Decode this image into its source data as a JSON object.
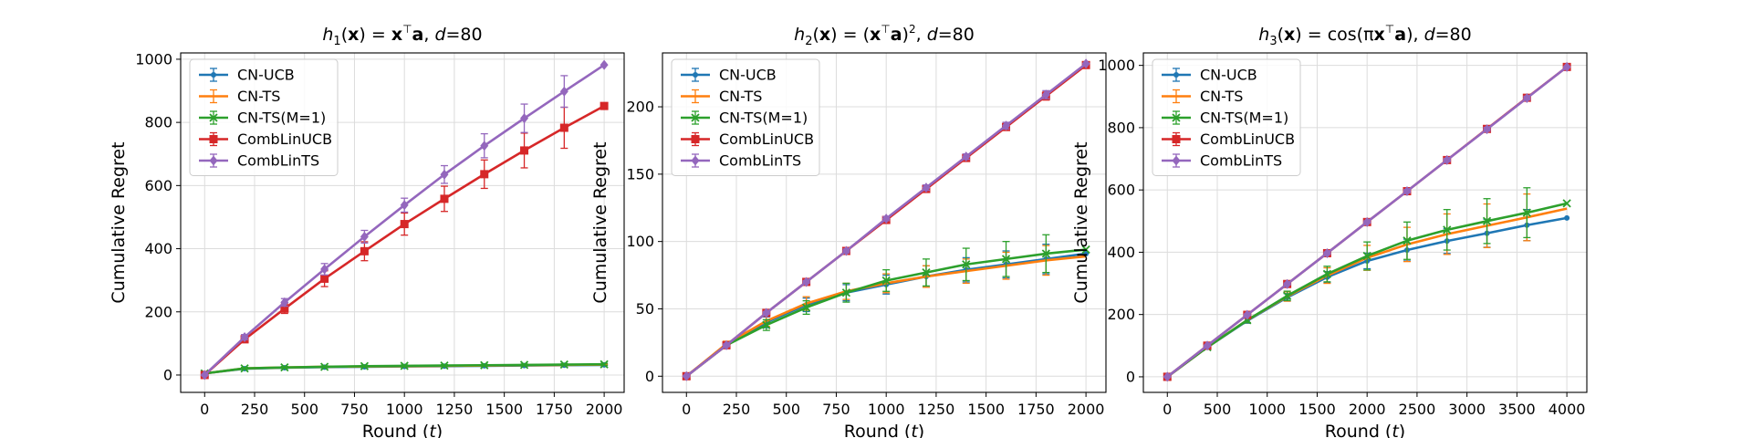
{
  "chart_data": [
    {
      "type": "line",
      "title": "h₁(x) = xᵀa, d=80",
      "title_parts": {
        "h": "h",
        "sub": "1",
        "mid": "(x) = x",
        "sup": "⊤",
        "tail": "a, ",
        "d": "d",
        "eq": "=80"
      },
      "xlabel": "Round (t)",
      "ylabel": "Cumulative Regret",
      "xlim": [
        -120,
        2100
      ],
      "ylim": [
        -55,
        1020
      ],
      "xticks": [
        0,
        250,
        500,
        750,
        1000,
        1250,
        1500,
        1750,
        2000
      ],
      "yticks": [
        0,
        200,
        400,
        600,
        800,
        1000
      ],
      "grid": true,
      "legend_position": "top-left",
      "series": [
        {
          "name": "CN-UCB",
          "color": "#1f77b4",
          "marker": "dot",
          "x": [
            0,
            200,
            400,
            600,
            800,
            1000,
            1200,
            1400,
            1600,
            1800,
            2000
          ],
          "y": [
            5,
            20,
            23,
            25,
            26,
            27,
            28,
            29,
            30,
            31,
            32
          ],
          "err": [
            3,
            2,
            2,
            2,
            2,
            2,
            2,
            2,
            2,
            2,
            2
          ]
        },
        {
          "name": "CN-TS",
          "color": "#ff7f0e",
          "marker": "none",
          "x": [
            0,
            200,
            400,
            600,
            800,
            1000,
            1200,
            1400,
            1600,
            1800,
            2000
          ],
          "y": [
            5,
            21,
            24,
            26,
            27,
            28,
            29,
            30,
            31,
            32,
            33
          ],
          "err": [
            3,
            2,
            2,
            2,
            2,
            2,
            2,
            2,
            2,
            2,
            2
          ]
        },
        {
          "name": "CN-TS(M=1)",
          "color": "#2ca02c",
          "marker": "x",
          "x": [
            0,
            200,
            400,
            600,
            800,
            1000,
            1200,
            1400,
            1600,
            1800,
            2000
          ],
          "y": [
            5,
            21,
            24,
            26,
            28,
            29,
            30,
            31,
            32,
            33,
            34
          ],
          "err": [
            3,
            3,
            3,
            3,
            3,
            3,
            3,
            3,
            3,
            3,
            3
          ]
        },
        {
          "name": "CombLinUCB",
          "color": "#d62728",
          "marker": "square",
          "x": [
            0,
            200,
            400,
            600,
            800,
            1000,
            1200,
            1400,
            1600,
            1800,
            2000
          ],
          "y": [
            0,
            113,
            210,
            305,
            392,
            478,
            558,
            636,
            711,
            783,
            852
          ],
          "err": [
            2,
            8,
            15,
            25,
            30,
            35,
            40,
            45,
            55,
            65,
            0
          ]
        },
        {
          "name": "CombLinTS",
          "color": "#9467bd",
          "marker": "diamond",
          "x": [
            0,
            200,
            400,
            600,
            800,
            1000,
            1200,
            1400,
            1600,
            1800,
            2000
          ],
          "y": [
            0,
            120,
            230,
            335,
            438,
            538,
            635,
            726,
            813,
            898,
            982
          ],
          "err": [
            2,
            8,
            12,
            18,
            20,
            22,
            28,
            38,
            45,
            50,
            0
          ]
        }
      ]
    },
    {
      "type": "line",
      "title": "h₂(x) = (xᵀa)², d=80",
      "title_parts": {
        "h": "h",
        "sub": "2",
        "mid": "(x) = (x",
        "sup": "⊤",
        "tail": "a)",
        "sup2": "2",
        "tail2": ", ",
        "d": "d",
        "eq": "=80"
      },
      "xlabel": "Round (t)",
      "ylabel": "Cumulative Regret",
      "xlim": [
        -120,
        2100
      ],
      "ylim": [
        -12,
        240
      ],
      "xticks": [
        0,
        250,
        500,
        750,
        1000,
        1250,
        1500,
        1750,
        2000
      ],
      "yticks": [
        0,
        50,
        100,
        150,
        200
      ],
      "grid": true,
      "legend_position": "top-left",
      "series": [
        {
          "name": "CN-UCB",
          "color": "#1f77b4",
          "marker": "dot",
          "x": [
            0,
            200,
            400,
            600,
            800,
            1000,
            1200,
            1400,
            1600,
            1800,
            2000
          ],
          "y": [
            0,
            23,
            40,
            53,
            62,
            68,
            74,
            79,
            83,
            87,
            91
          ],
          "err": [
            1,
            2,
            4,
            5,
            6,
            7,
            8,
            9,
            10,
            11,
            0
          ]
        },
        {
          "name": "CN-TS",
          "color": "#ff7f0e",
          "marker": "none",
          "x": [
            0,
            200,
            400,
            600,
            800,
            1000,
            1200,
            1400,
            1600,
            1800,
            2000
          ],
          "y": [
            0,
            24,
            41,
            54,
            63,
            69,
            74,
            78,
            82,
            86,
            89
          ],
          "err": [
            1,
            2,
            4,
            5,
            6,
            7,
            8,
            9,
            10,
            11,
            0
          ]
        },
        {
          "name": "CN-TS(M=1)",
          "color": "#2ca02c",
          "marker": "x",
          "x": [
            0,
            200,
            400,
            600,
            800,
            1000,
            1200,
            1400,
            1600,
            1800,
            2000
          ],
          "y": [
            0,
            23,
            38,
            51,
            62,
            71,
            77,
            83,
            87,
            91,
            94
          ],
          "err": [
            1,
            2,
            4,
            5,
            7,
            8,
            10,
            12,
            13,
            14,
            0
          ]
        },
        {
          "name": "CombLinUCB",
          "color": "#d62728",
          "marker": "square",
          "x": [
            0,
            200,
            400,
            600,
            800,
            1000,
            1200,
            1400,
            1600,
            1800,
            2000
          ],
          "y": [
            0,
            23,
            47,
            70,
            93,
            116,
            139,
            162,
            185,
            208,
            231
          ],
          "err": [
            0.5,
            1,
            1,
            1,
            1.5,
            1.5,
            2,
            2,
            2.5,
            3,
            0
          ]
        },
        {
          "name": "CombLinTS",
          "color": "#9467bd",
          "marker": "diamond",
          "x": [
            0,
            200,
            400,
            600,
            800,
            1000,
            1200,
            1400,
            1600,
            1800,
            2000
          ],
          "y": [
            0,
            23,
            47,
            70,
            93,
            117,
            140,
            163,
            186,
            209,
            232
          ],
          "err": [
            0.5,
            1,
            1,
            1,
            1.5,
            1.5,
            2,
            2,
            2.5,
            3,
            0
          ]
        }
      ]
    },
    {
      "type": "line",
      "title": "h₃(x) = cos(πxᵀa), d=80",
      "title_parts": {
        "h": "h",
        "sub": "3",
        "mid": "(x) = cos(πx",
        "sup": "⊤",
        "tail": "a), ",
        "d": "d",
        "eq": "=80"
      },
      "xlabel": "Round (t)",
      "ylabel": "Cumulative Regret",
      "xlim": [
        -240,
        4200
      ],
      "ylim": [
        -50,
        1040
      ],
      "xticks": [
        0,
        500,
        1000,
        1500,
        2000,
        2500,
        3000,
        3500,
        4000
      ],
      "yticks": [
        0,
        200,
        400,
        600,
        800,
        1000
      ],
      "grid": true,
      "legend_position": "top-left",
      "series": [
        {
          "name": "CN-UCB",
          "color": "#1f77b4",
          "marker": "dot",
          "x": [
            0,
            400,
            800,
            1200,
            1600,
            2000,
            2400,
            2800,
            3200,
            3600,
            4000
          ],
          "y": [
            0,
            95,
            180,
            255,
            320,
            372,
            407,
            436,
            461,
            487,
            510
          ],
          "err": [
            2,
            5,
            8,
            12,
            18,
            25,
            35,
            40,
            45,
            50,
            0
          ]
        },
        {
          "name": "CN-TS",
          "color": "#ff7f0e",
          "marker": "none",
          "x": [
            0,
            400,
            800,
            1200,
            1600,
            2000,
            2400,
            2800,
            3200,
            3600,
            4000
          ],
          "y": [
            0,
            95,
            182,
            258,
            325,
            382,
            425,
            458,
            485,
            512,
            540
          ],
          "err": [
            2,
            5,
            8,
            15,
            25,
            40,
            55,
            65,
            70,
            75,
            0
          ]
        },
        {
          "name": "CN-TS(M=1)",
          "color": "#2ca02c",
          "marker": "x",
          "x": [
            0,
            400,
            800,
            1200,
            1600,
            2000,
            2400,
            2800,
            3200,
            3600,
            4000
          ],
          "y": [
            0,
            95,
            182,
            260,
            330,
            388,
            437,
            472,
            500,
            527,
            557
          ],
          "err": [
            2,
            5,
            8,
            15,
            25,
            45,
            60,
            65,
            72,
            80,
            0
          ]
        },
        {
          "name": "CombLinUCB",
          "color": "#d62728",
          "marker": "square",
          "x": [
            0,
            400,
            800,
            1200,
            1600,
            2000,
            2400,
            2800,
            3200,
            3600,
            4000
          ],
          "y": [
            0,
            100,
            199,
            298,
            397,
            497,
            596,
            696,
            796,
            896,
            995
          ],
          "err": [
            0.5,
            2,
            3,
            3,
            4,
            4,
            5,
            5,
            6,
            6,
            0
          ]
        },
        {
          "name": "CombLinTS",
          "color": "#9467bd",
          "marker": "diamond",
          "x": [
            0,
            400,
            800,
            1200,
            1600,
            2000,
            2400,
            2800,
            3200,
            3600,
            4000
          ],
          "y": [
            0,
            100,
            199,
            298,
            397,
            497,
            596,
            696,
            795,
            895,
            995
          ],
          "err": [
            0.5,
            2,
            3,
            3,
            4,
            4,
            5,
            5,
            6,
            6,
            0
          ]
        }
      ]
    }
  ]
}
